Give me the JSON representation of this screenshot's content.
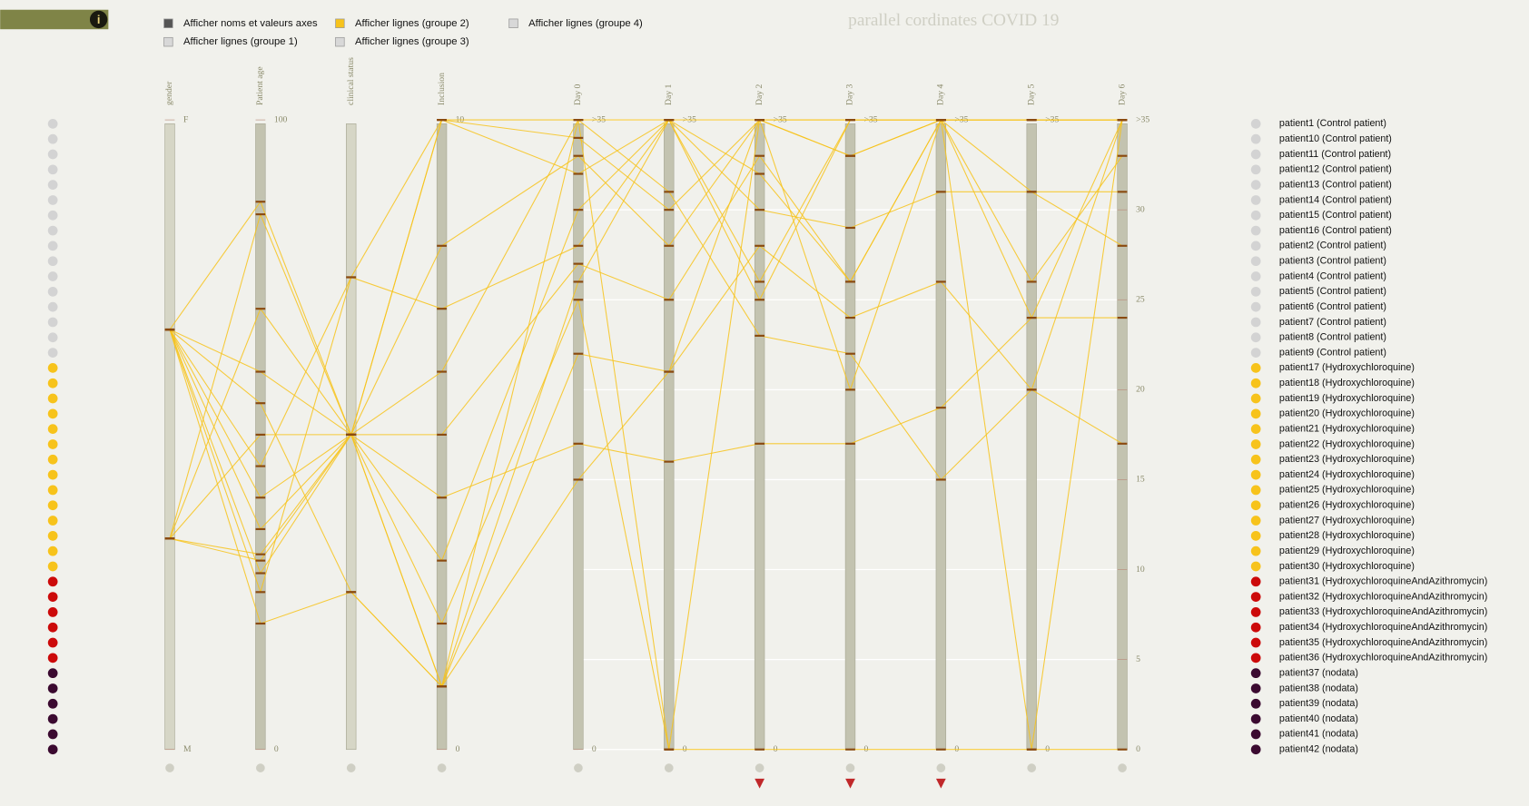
{
  "controls": [
    {
      "label": "Afficher noms et valeurs axes",
      "color": "#555555"
    },
    {
      "label": "Afficher lignes (groupe 2)",
      "color": "#f7c31b"
    },
    {
      "label": "Afficher lignes (groupe 4)",
      "color": "#d8d8d8"
    },
    {
      "label": "Afficher lignes (groupe 1)",
      "color": "#d8d8d8"
    },
    {
      "label": "Afficher lignes (groupe 3)",
      "color": "#d8d8d8"
    }
  ],
  "info": "i",
  "title": "parallel cordinates COVID 19",
  "axes": [
    {
      "name": "gender",
      "lim": [
        0,
        1
      ],
      "ticks": [
        {
          "value": 1,
          "label": "F"
        },
        {
          "value": 0,
          "label": "M"
        }
      ]
    },
    {
      "name": "Patient age",
      "lim": [
        0,
        100
      ],
      "ticks": [
        100,
        0
      ]
    },
    {
      "name": "clinical status",
      "lim": [
        0,
        1
      ]
    },
    {
      "name": "Inclusion",
      "lim": [
        0,
        10
      ],
      "ticks": [
        10,
        0
      ]
    },
    {
      "name": "Day 0",
      "lim": [
        0,
        35
      ],
      "ticks": [
        {
          "value": 35,
          "label": ">35"
        },
        0
      ]
    },
    {
      "name": "Day 1",
      "lim": [
        0,
        35
      ],
      "ticks": [
        {
          "value": 35,
          "label": ">35"
        },
        0
      ]
    },
    {
      "name": "Day 2",
      "lim": [
        0,
        35
      ],
      "ticks": [
        {
          "value": 35,
          "label": ">35"
        },
        0
      ]
    },
    {
      "name": "Day 3",
      "lim": [
        0,
        35
      ],
      "ticks": [
        {
          "value": 35,
          "label": ">35"
        },
        0
      ]
    },
    {
      "name": "Day 4",
      "lim": [
        0,
        35
      ],
      "ticks": [
        {
          "value": 35,
          "label": ">35"
        },
        0
      ]
    },
    {
      "name": "Day 5",
      "lim": [
        0,
        35
      ],
      "ticks": [
        {
          "value": 35,
          "label": ">35"
        },
        0
      ]
    },
    {
      "name": "Day 6",
      "lim": [
        0,
        35
      ],
      "ticks": [
        {
          "value": 35,
          "label": ">35"
        },
        30,
        25,
        20,
        15,
        10,
        5,
        0
      ]
    }
  ],
  "lines": {
    "color": "#f7c31b",
    "rows": [
      [
        0.667,
        87,
        0.5,
        10,
        35,
        35,
        35,
        35,
        35,
        35,
        35
      ],
      [
        0.667,
        60,
        0.5,
        8,
        33,
        28,
        35,
        33,
        35,
        35,
        35
      ],
      [
        0.667,
        45,
        0.75,
        10,
        32,
        35,
        30,
        29,
        31,
        31,
        31
      ],
      [
        0.335,
        70,
        0.5,
        5,
        27,
        25,
        33,
        26,
        35,
        24,
        24
      ],
      [
        0.667,
        40,
        0.5,
        3,
        30,
        35,
        26,
        35,
        35,
        31,
        28
      ],
      [
        0.667,
        55,
        0.25,
        1,
        35,
        0,
        35,
        20,
        35,
        0,
        35
      ],
      [
        0.335,
        30,
        0.5,
        2,
        25,
        0,
        0,
        0,
        0,
        0,
        0
      ],
      [
        0.667,
        35,
        0.5,
        1,
        22,
        21,
        28,
        24,
        26,
        20,
        17
      ],
      [
        0.335,
        85,
        0.5,
        6,
        35,
        31,
        23,
        22,
        15,
        20,
        35
      ],
      [
        0.667,
        25,
        0.75,
        7,
        28,
        35,
        25,
        35,
        35,
        26,
        33
      ],
      [
        0.335,
        50,
        0.5,
        4,
        17,
        16,
        17,
        17,
        19,
        24,
        35
      ],
      [
        0.667,
        28,
        0.5,
        1,
        15,
        21,
        35,
        35,
        35,
        35,
        35
      ],
      [
        0.667,
        20,
        0.25,
        1,
        26,
        35,
        32,
        26,
        35,
        35,
        35
      ],
      [
        0.335,
        31,
        0.5,
        10,
        34,
        30,
        35,
        33,
        35,
        35,
        35
      ]
    ]
  },
  "patients": [
    {
      "label": "patient1 (Control patient)",
      "color": "#d3d3d3"
    },
    {
      "label": "patient10 (Control patient)",
      "color": "#d3d3d3"
    },
    {
      "label": "patient11 (Control patient)",
      "color": "#d3d3d3"
    },
    {
      "label": "patient12 (Control patient)",
      "color": "#d3d3d3"
    },
    {
      "label": "patient13 (Control patient)",
      "color": "#d3d3d3"
    },
    {
      "label": "patient14 (Control patient)",
      "color": "#d3d3d3"
    },
    {
      "label": "patient15 (Control patient)",
      "color": "#d3d3d3"
    },
    {
      "label": "patient16 (Control patient)",
      "color": "#d3d3d3"
    },
    {
      "label": "patient2 (Control patient)",
      "color": "#d3d3d3"
    },
    {
      "label": "patient3 (Control patient)",
      "color": "#d3d3d3"
    },
    {
      "label": "patient4 (Control patient)",
      "color": "#d3d3d3"
    },
    {
      "label": "patient5 (Control patient)",
      "color": "#d3d3d3"
    },
    {
      "label": "patient6 (Control patient)",
      "color": "#d3d3d3"
    },
    {
      "label": "patient7 (Control patient)",
      "color": "#d3d3d3"
    },
    {
      "label": "patient8 (Control patient)",
      "color": "#d3d3d3"
    },
    {
      "label": "patient9 (Control patient)",
      "color": "#d3d3d3"
    },
    {
      "label": "patient17 (Hydroxychloroquine)",
      "color": "#f7c31b"
    },
    {
      "label": "patient18 (Hydroxychloroquine)",
      "color": "#f7c31b"
    },
    {
      "label": "patient19 (Hydroxychloroquine)",
      "color": "#f7c31b"
    },
    {
      "label": "patient20 (Hydroxychloroquine)",
      "color": "#f7c31b"
    },
    {
      "label": "patient21 (Hydroxychloroquine)",
      "color": "#f7c31b"
    },
    {
      "label": "patient22 (Hydroxychloroquine)",
      "color": "#f7c31b"
    },
    {
      "label": "patient23 (Hydroxychloroquine)",
      "color": "#f7c31b"
    },
    {
      "label": "patient24 (Hydroxychloroquine)",
      "color": "#f7c31b"
    },
    {
      "label": "patient25 (Hydroxychloroquine)",
      "color": "#f7c31b"
    },
    {
      "label": "patient26 (Hydroxychloroquine)",
      "color": "#f7c31b"
    },
    {
      "label": "patient27 (Hydroxychloroquine)",
      "color": "#f7c31b"
    },
    {
      "label": "patient28 (Hydroxychloroquine)",
      "color": "#f7c31b"
    },
    {
      "label": "patient29 (Hydroxychloroquine)",
      "color": "#f7c31b"
    },
    {
      "label": "patient30 (Hydroxychloroquine)",
      "color": "#f7c31b"
    },
    {
      "label": "patient31 (HydroxychloroquineAndAzithromycin)",
      "color": "#cc0a0a"
    },
    {
      "label": "patient32 (HydroxychloroquineAndAzithromycin)",
      "color": "#cc0a0a"
    },
    {
      "label": "patient33 (HydroxychloroquineAndAzithromycin)",
      "color": "#cc0a0a"
    },
    {
      "label": "patient34 (HydroxychloroquineAndAzithromycin)",
      "color": "#cc0a0a"
    },
    {
      "label": "patient35 (HydroxychloroquineAndAzithromycin)",
      "color": "#cc0a0a"
    },
    {
      "label": "patient36 (HydroxychloroquineAndAzithromycin)",
      "color": "#cc0a0a"
    },
    {
      "label": "patient37 (nodata)",
      "color": "#3b0a30"
    },
    {
      "label": "patient38 (nodata)",
      "color": "#3b0a30"
    },
    {
      "label": "patient39 (nodata)",
      "color": "#3b0a30"
    },
    {
      "label": "patient40 (nodata)",
      "color": "#3b0a30"
    },
    {
      "label": "patient41 (nodata)",
      "color": "#3b0a30"
    },
    {
      "label": "patient42 (nodata)",
      "color": "#3b0a30"
    }
  ]
}
